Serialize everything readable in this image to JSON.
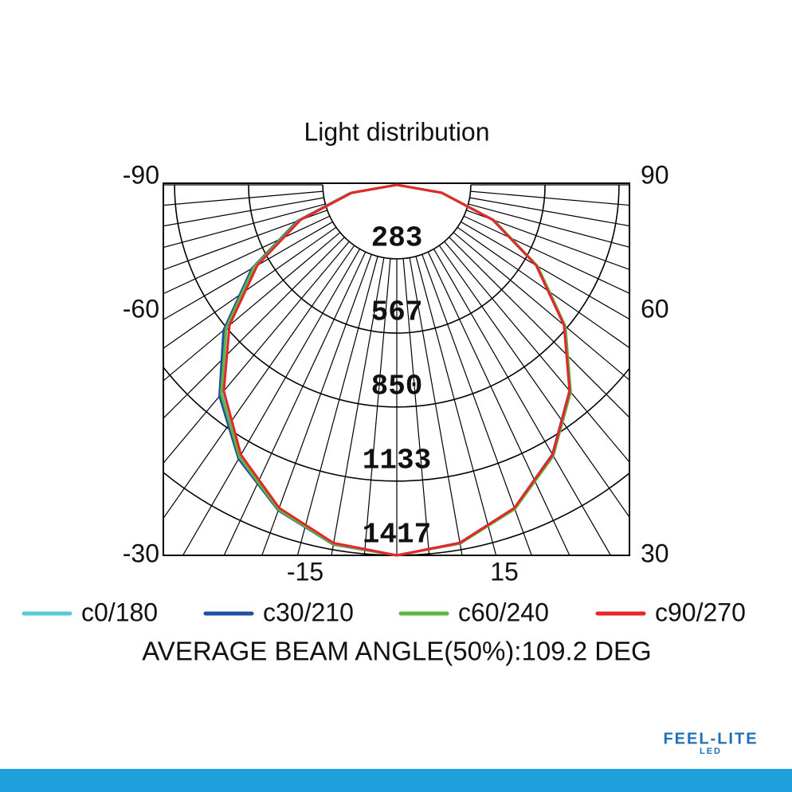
{
  "chart_data": {
    "type": "polar",
    "title": "Light distribution",
    "angles": [
      -90,
      -80,
      -70,
      -60,
      -50,
      -40,
      -30,
      -20,
      -10,
      0,
      10,
      20,
      30,
      40,
      50,
      60,
      70,
      80,
      90
    ],
    "rlim": [
      0,
      1417
    ],
    "rticks": [
      283,
      567,
      850,
      1133,
      1417
    ],
    "side_labels": {
      "left": [
        -90,
        -60,
        -30
      ],
      "right": [
        90,
        60,
        30
      ],
      "bottom": [
        -15,
        15
      ]
    },
    "series": [
      {
        "name": "c0/180",
        "color": "#5bc8d8",
        "values": [
          0,
          180,
          400,
          630,
          850,
          1040,
          1200,
          1320,
          1395,
          1417,
          1392,
          1318,
          1195,
          1032,
          838,
          618,
          392,
          175,
          0
        ]
      },
      {
        "name": "c30/210",
        "color": "#1f4fa3",
        "values": [
          0,
          182,
          405,
          640,
          865,
          1055,
          1210,
          1325,
          1397,
          1417,
          1390,
          1315,
          1190,
          1028,
          835,
          615,
          390,
          174,
          0
        ]
      },
      {
        "name": "c60/240",
        "color": "#5cb83c",
        "values": [
          0,
          178,
          398,
          632,
          852,
          1045,
          1203,
          1322,
          1396,
          1417,
          1393,
          1320,
          1197,
          1035,
          842,
          622,
          395,
          177,
          0
        ]
      },
      {
        "name": "c90/270",
        "color": "#e8262a",
        "values": [
          0,
          174,
          391,
          616,
          835,
          1029,
          1192,
          1315,
          1391,
          1417,
          1391,
          1315,
          1192,
          1029,
          835,
          616,
          391,
          174,
          0
        ]
      }
    ],
    "note": "AVERAGE BEAM ANGLE(50%):109.2  DEG"
  },
  "logo": {
    "name": "FEEL-LITE",
    "sub": "LED"
  }
}
